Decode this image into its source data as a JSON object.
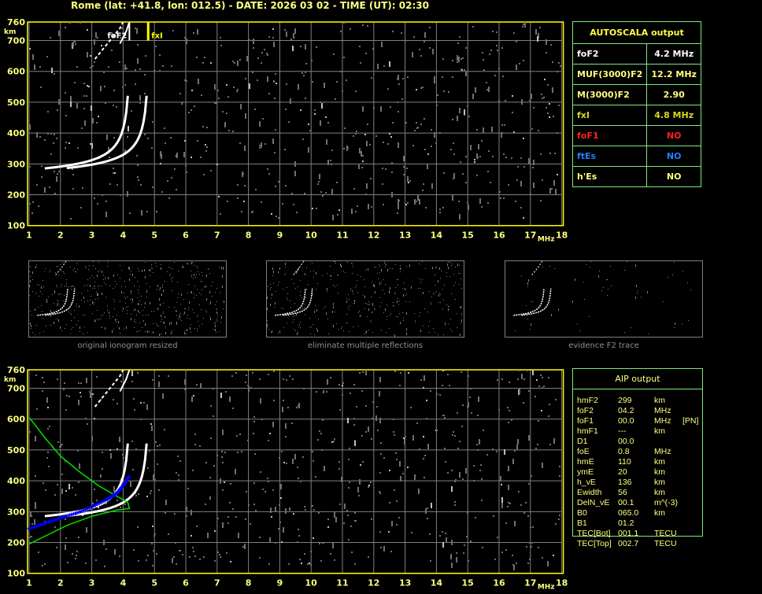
{
  "header": {
    "title": "Rome (lat: +41.8, lon: 012.5) - DATE: 2026 03 02 - TIME (UT): 02:30"
  },
  "axes": {
    "y_unit": "km",
    "x_unit": "MHz",
    "y_ticks": [
      760,
      700,
      600,
      500,
      400,
      300,
      200,
      100
    ],
    "x_ticks": [
      1,
      2,
      3,
      4,
      5,
      6,
      7,
      8,
      9,
      10,
      11,
      12,
      13,
      14,
      15,
      16,
      17,
      18
    ]
  },
  "markers": {
    "foF2_label": "foF2",
    "foF2_value": 4.2,
    "fxI_label": "fxI",
    "fxI_value": 4.8
  },
  "autoscala": {
    "title": "AUTOSCALA output",
    "rows": [
      {
        "label": "foF2",
        "value": "4.2 MHz",
        "color": "#ffffff"
      },
      {
        "label": "MUF(3000)F2",
        "value": "12.2 MHz",
        "color": "#ffff80"
      },
      {
        "label": "M(3000)F2",
        "value": "2.90",
        "color": "#ffff80"
      },
      {
        "label": "fxI",
        "value": "4.8 MHz",
        "color": "#d8d820"
      },
      {
        "label": "foF1",
        "value": "NO",
        "color": "#ff2020"
      },
      {
        "label": "ftEs",
        "value": "NO",
        "color": "#2080ff"
      },
      {
        "label": "h'Es",
        "value": "NO",
        "color": "#ffff80"
      }
    ]
  },
  "thumbnails": [
    {
      "caption": "original ionogram resized"
    },
    {
      "caption": "eliminate multiple reflections"
    },
    {
      "caption": "evidence F2 trace"
    }
  ],
  "aip": {
    "title": "AIP output",
    "rows": [
      [
        "hmF2",
        "299",
        "km",
        ""
      ],
      [
        "foF2",
        "04.2",
        "MHz",
        ""
      ],
      [
        "foF1",
        "00.0",
        "MHz",
        "[PN]"
      ],
      [
        "hmF1",
        "---",
        "km",
        ""
      ],
      [
        "D1",
        "00.0",
        "",
        ""
      ],
      [
        "foE",
        "0.8",
        "MHz",
        ""
      ],
      [
        "hmE",
        "110",
        "km",
        ""
      ],
      [
        "ymE",
        "20",
        "km",
        ""
      ],
      [
        "h_vE",
        "136",
        "km",
        ""
      ],
      [
        "Ewidth",
        "56",
        "km",
        ""
      ],
      [
        "DelN_vE",
        "00.1",
        "m^(-3)",
        ""
      ],
      [
        "B0",
        "065.0",
        "km",
        ""
      ],
      [
        "B1",
        "01.2",
        "",
        ""
      ],
      [
        "TEC[Bot]",
        "001.1",
        "TECU",
        ""
      ],
      [
        "TEC[Top]",
        "002.7",
        "TECU",
        ""
      ]
    ]
  },
  "colors": {
    "axis": "#ffff00",
    "grid": "#808080",
    "trace": "#ffffff",
    "profile": "#00e000",
    "aip_points": "#0000ff",
    "table_border": "#7ee87e"
  }
}
